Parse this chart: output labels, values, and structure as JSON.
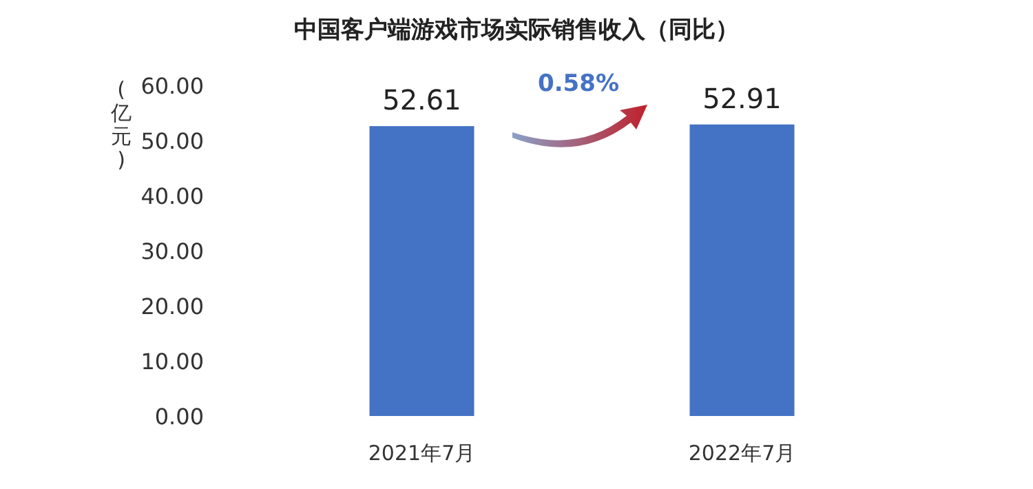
{
  "chart_data": {
    "type": "bar",
    "title": "中国客户端游戏市场实际销售收入（同比）",
    "ylabel": "(亿元)",
    "categories": [
      "2021年7月",
      "2022年7月"
    ],
    "values": [
      52.61,
      52.91
    ],
    "color": "#4472c4",
    "data_labels": true,
    "ylim": [
      0,
      60
    ],
    "yticks": [
      {
        "value": 0,
        "label": "0.00"
      },
      {
        "value": 10,
        "label": "10.00"
      },
      {
        "value": 20,
        "label": "20.00"
      },
      {
        "value": 30,
        "label": "30.00"
      },
      {
        "value": 40,
        "label": "40.00"
      },
      {
        "value": 50,
        "label": "50.00"
      },
      {
        "value": 60,
        "label": "60.00"
      }
    ],
    "annotations": [
      "0.58%"
    ]
  }
}
